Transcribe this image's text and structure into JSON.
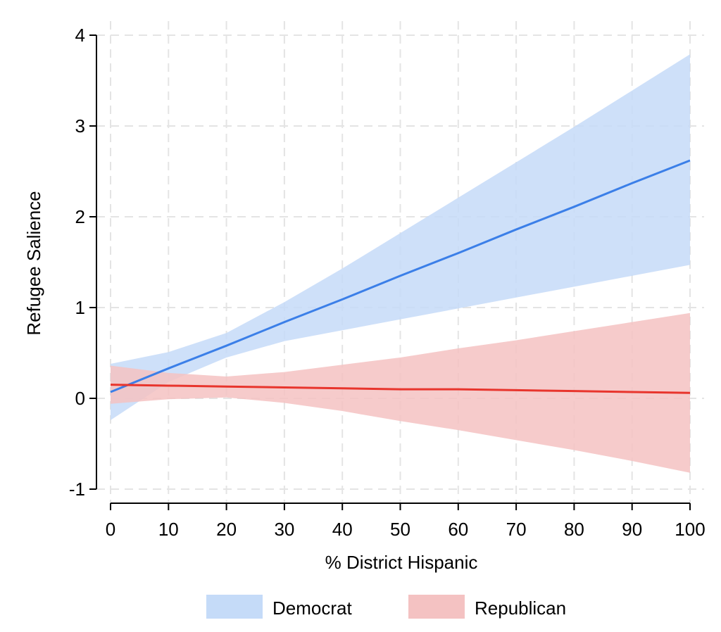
{
  "chart_data": {
    "type": "line",
    "xlabel": "% District Hispanic",
    "ylabel": "Refugee Salience",
    "xlim": [
      0,
      100
    ],
    "ylim": [
      -1,
      4
    ],
    "xticks": [
      0,
      10,
      20,
      30,
      40,
      50,
      60,
      70,
      80,
      90,
      100
    ],
    "yticks": [
      -1,
      0,
      1,
      2,
      3,
      4
    ],
    "grid": true,
    "legend": {
      "position": "bottom"
    },
    "series": [
      {
        "name": "Democrat",
        "color": "#3b7fe8",
        "band_color": "#c5dbf8",
        "x": [
          0,
          10,
          20,
          30,
          40,
          50,
          60,
          70,
          80,
          90,
          100
        ],
        "y": [
          0.07,
          0.33,
          0.58,
          0.84,
          1.09,
          1.35,
          1.6,
          1.86,
          2.11,
          2.37,
          2.62
        ],
        "lower": [
          -0.24,
          0.18,
          0.45,
          0.63,
          0.75,
          0.87,
          0.99,
          1.11,
          1.23,
          1.35,
          1.47
        ],
        "upper": [
          0.38,
          0.51,
          0.72,
          1.06,
          1.43,
          1.82,
          2.21,
          2.6,
          2.99,
          3.39,
          3.79
        ]
      },
      {
        "name": "Republican",
        "color": "#e8352d",
        "band_color": "#f4c2c2",
        "x": [
          0,
          10,
          20,
          30,
          40,
          50,
          60,
          70,
          80,
          90,
          100
        ],
        "y": [
          0.15,
          0.14,
          0.13,
          0.12,
          0.11,
          0.1,
          0.1,
          0.09,
          0.08,
          0.07,
          0.06
        ],
        "lower": [
          -0.06,
          -0.01,
          0.01,
          -0.05,
          -0.14,
          -0.25,
          -0.35,
          -0.46,
          -0.57,
          -0.69,
          -0.82
        ],
        "upper": [
          0.36,
          0.28,
          0.24,
          0.29,
          0.37,
          0.45,
          0.55,
          0.64,
          0.74,
          0.84,
          0.94
        ]
      }
    ]
  }
}
